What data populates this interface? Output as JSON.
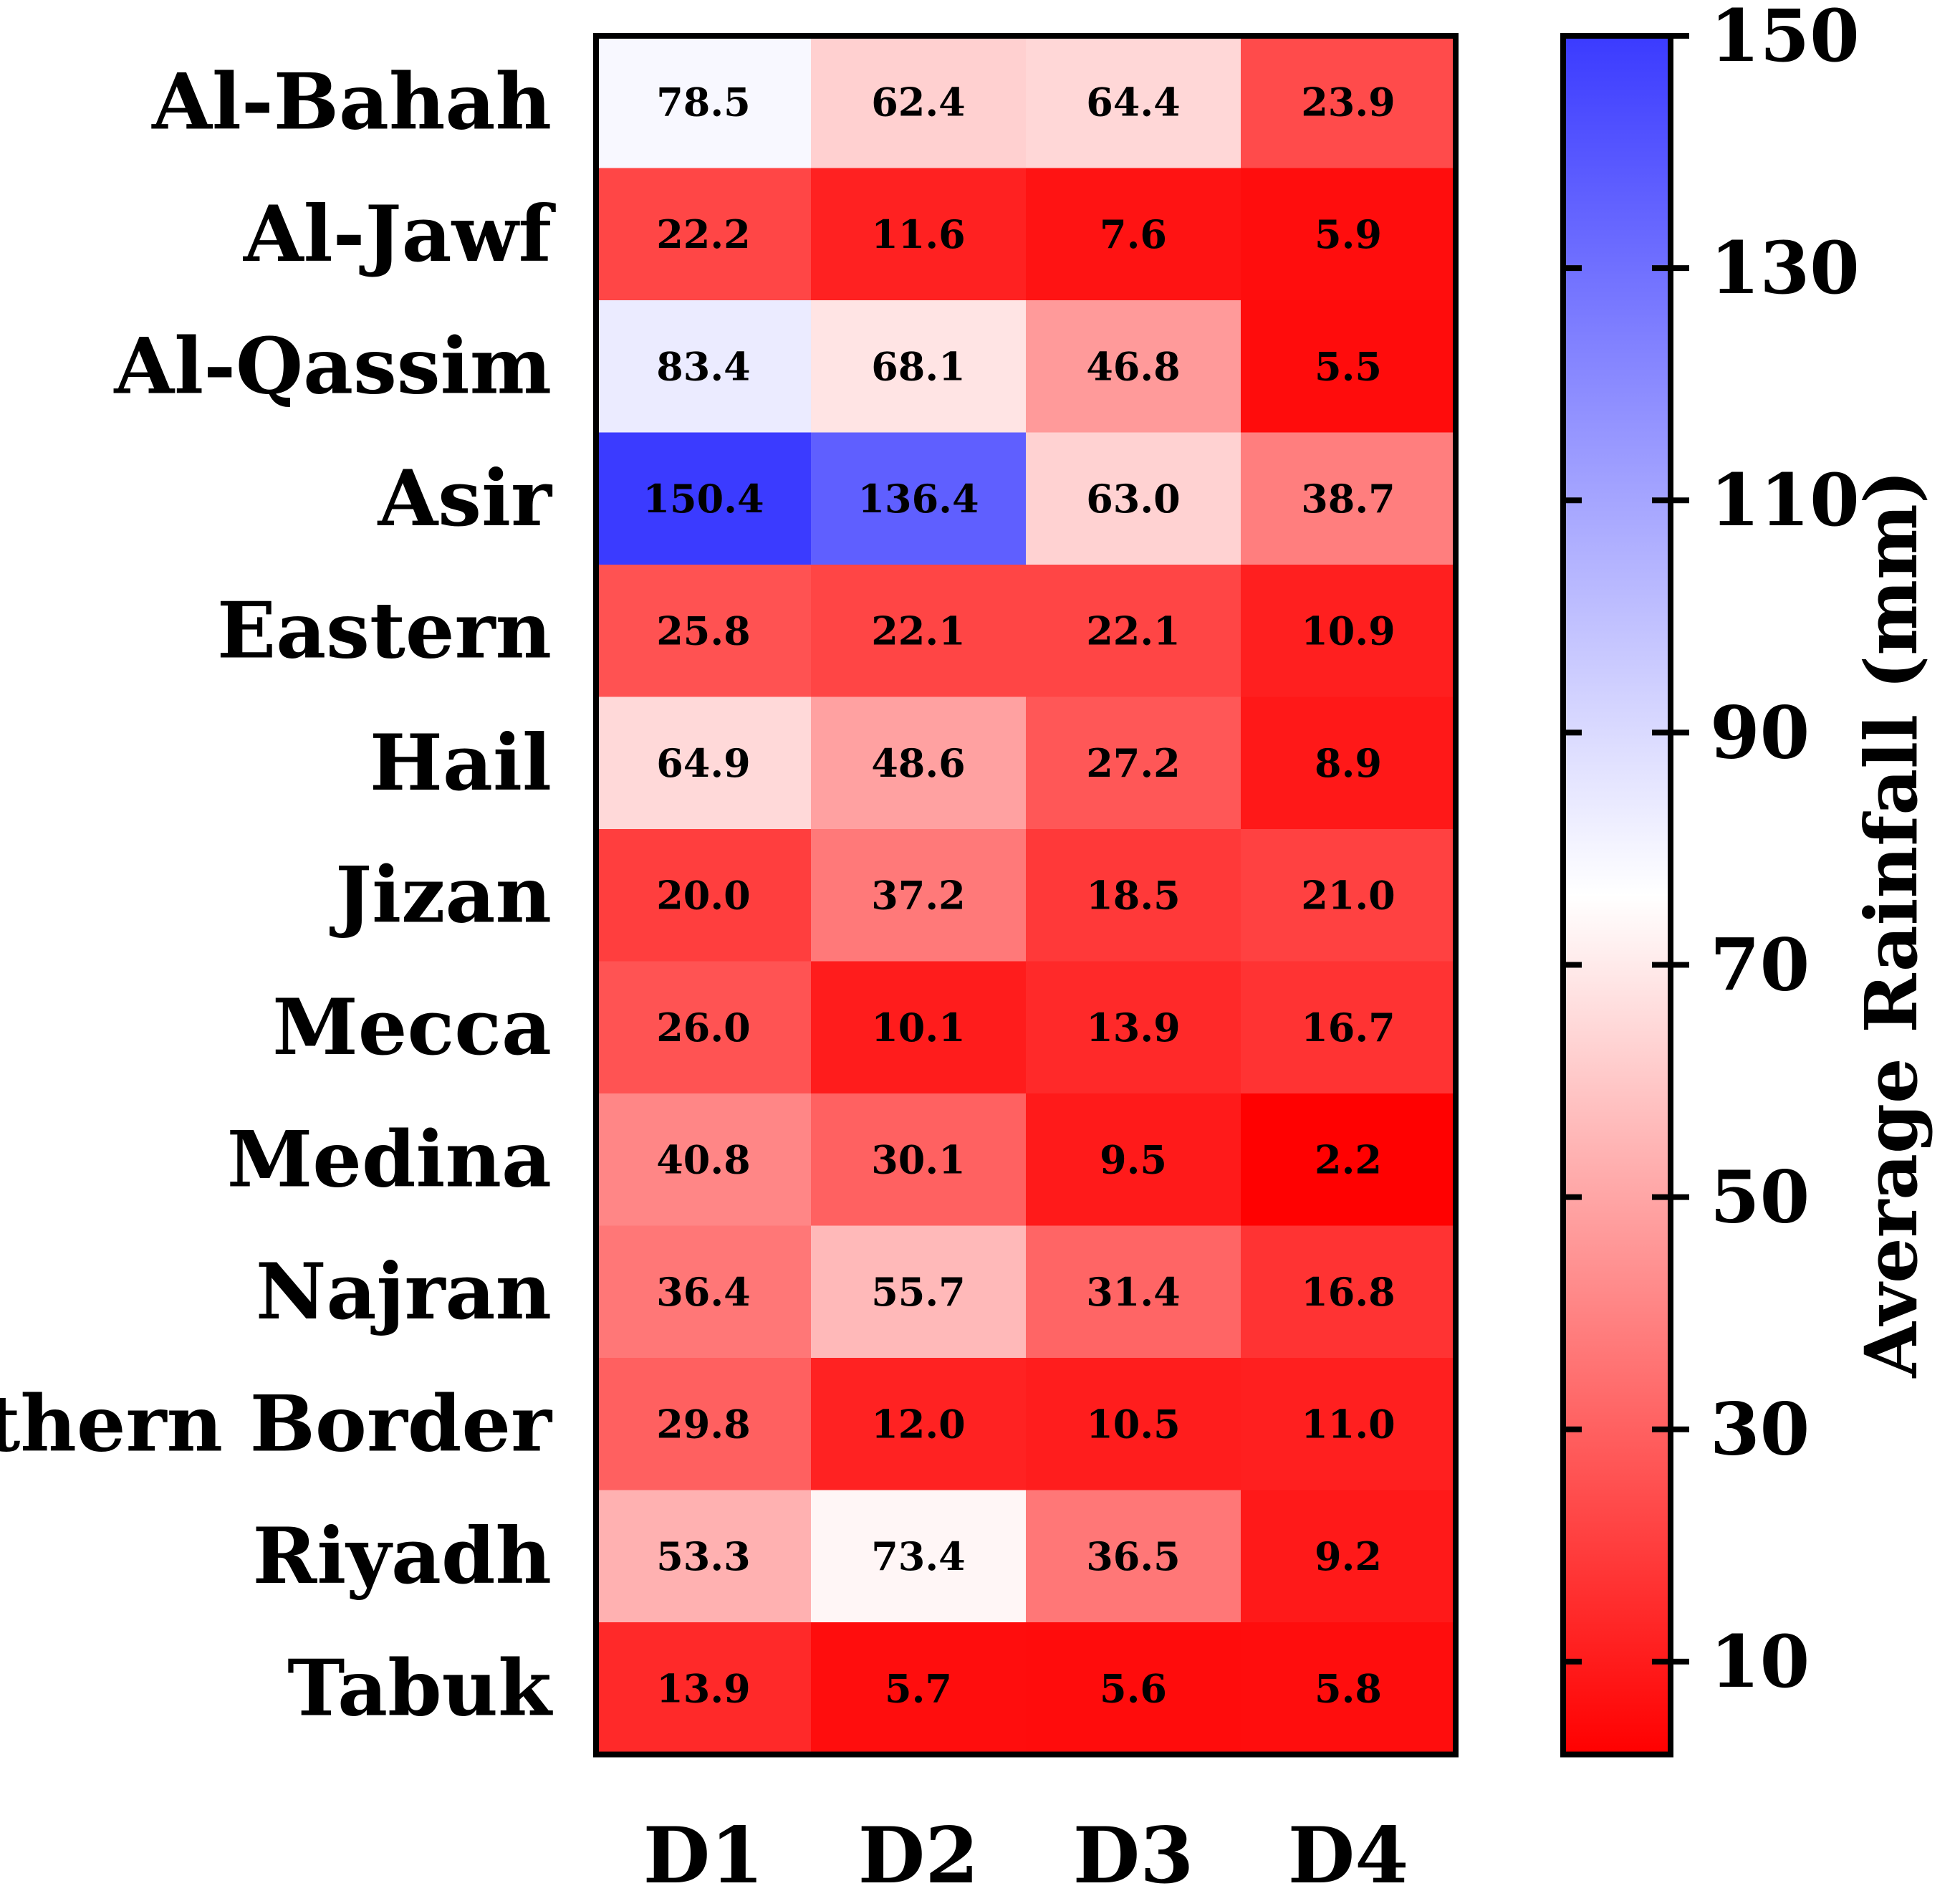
{
  "chart_data": {
    "type": "heatmap",
    "title": "",
    "rows": [
      "Al-Bahah",
      "Al-Jawf",
      "Al-Qassim",
      "Asir",
      "Eastern",
      "Hail",
      "Jizan",
      "Mecca",
      "Medina",
      "Najran",
      "Northern Border",
      "Riyadh",
      "Tabuk"
    ],
    "columns": [
      "D1",
      "D2",
      "D3",
      "D4"
    ],
    "values": [
      [
        "78.5",
        "62.4",
        "64.4",
        "23.9"
      ],
      [
        "22.2",
        "11.6",
        "7.6",
        "5.9"
      ],
      [
        "83.4",
        "68.1",
        "46.8",
        "5.5"
      ],
      [
        "150.4",
        "136.4",
        "63.0",
        "38.7"
      ],
      [
        "25.8",
        "22.1",
        "22.1",
        "10.9"
      ],
      [
        "64.9",
        "48.6",
        "27.2",
        "8.9"
      ],
      [
        "20.0",
        "37.2",
        "18.5",
        "21.0"
      ],
      [
        "26.0",
        "10.1",
        "13.9",
        "16.7"
      ],
      [
        "40.8",
        "30.1",
        "9.5",
        "2.2"
      ],
      [
        "36.4",
        "55.7",
        "31.4",
        "16.8"
      ],
      [
        "29.8",
        "12.0",
        "10.5",
        "11.0"
      ],
      [
        "53.3",
        "73.4",
        "36.5",
        "9.2"
      ],
      [
        "13.9",
        "5.7",
        "5.6",
        "5.8"
      ]
    ],
    "colorbar": {
      "label": "Average Rainfall (mm)",
      "ticks": [
        "10",
        "30",
        "50",
        "70",
        "90",
        "110",
        "130",
        "150"
      ],
      "range": [
        2,
        150
      ],
      "color_low": "#ff0000",
      "color_mid": "#ffffff",
      "color_high": "#3b3bff",
      "mid_value": 76
    }
  }
}
